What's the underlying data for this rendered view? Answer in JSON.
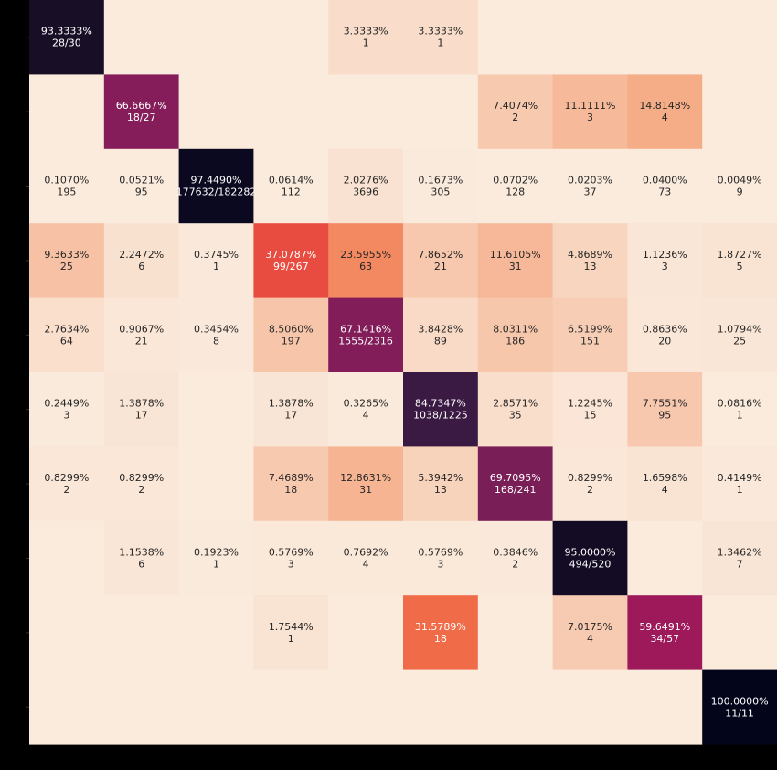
{
  "chart_data": {
    "type": "heatmap",
    "title": "",
    "xlabel": "",
    "ylabel": "",
    "rows": 10,
    "cols": 10,
    "color_scale": "rocket_r",
    "cells": [
      [
        {
          "pct": "93.3333%",
          "count": "28/30",
          "v": 93.3333
        },
        null,
        null,
        null,
        {
          "pct": "3.3333%",
          "count": "1",
          "v": 3.3333
        },
        {
          "pct": "3.3333%",
          "count": "1",
          "v": 3.3333
        },
        null,
        null,
        null,
        null
      ],
      [
        null,
        {
          "pct": "66.6667%",
          "count": "18/27",
          "v": 66.6667
        },
        null,
        null,
        null,
        null,
        {
          "pct": "7.4074%",
          "count": "2",
          "v": 7.4074
        },
        {
          "pct": "11.1111%",
          "count": "3",
          "v": 11.1111
        },
        {
          "pct": "14.8148%",
          "count": "4",
          "v": 14.8148
        },
        null
      ],
      [
        {
          "pct": "0.1070%",
          "count": "195",
          "v": 0.107
        },
        {
          "pct": "0.0521%",
          "count": "95",
          "v": 0.0521
        },
        {
          "pct": "97.4490%",
          "count": "177632/182282",
          "v": 97.449
        },
        {
          "pct": "0.0614%",
          "count": "112",
          "v": 0.0614
        },
        {
          "pct": "2.0276%",
          "count": "3696",
          "v": 2.0276
        },
        {
          "pct": "0.1673%",
          "count": "305",
          "v": 0.1673
        },
        {
          "pct": "0.0702%",
          "count": "128",
          "v": 0.0702
        },
        {
          "pct": "0.0203%",
          "count": "37",
          "v": 0.0203
        },
        {
          "pct": "0.0400%",
          "count": "73",
          "v": 0.04
        },
        {
          "pct": "0.0049%",
          "count": "9",
          "v": 0.0049
        }
      ],
      [
        {
          "pct": "9.3633%",
          "count": "25",
          "v": 9.3633
        },
        {
          "pct": "2.2472%",
          "count": "6",
          "v": 2.2472
        },
        {
          "pct": "0.3745%",
          "count": "1",
          "v": 0.3745
        },
        {
          "pct": "37.0787%",
          "count": "99/267",
          "v": 37.0787
        },
        {
          "pct": "23.5955%",
          "count": "63",
          "v": 23.5955
        },
        {
          "pct": "7.8652%",
          "count": "21",
          "v": 7.8652
        },
        {
          "pct": "11.6105%",
          "count": "31",
          "v": 11.6105
        },
        {
          "pct": "4.8689%",
          "count": "13",
          "v": 4.8689
        },
        {
          "pct": "1.1236%",
          "count": "3",
          "v": 1.1236
        },
        {
          "pct": "1.8727%",
          "count": "5",
          "v": 1.8727
        }
      ],
      [
        {
          "pct": "2.7634%",
          "count": "64",
          "v": 2.7634
        },
        {
          "pct": "0.9067%",
          "count": "21",
          "v": 0.9067
        },
        {
          "pct": "0.3454%",
          "count": "8",
          "v": 0.3454
        },
        {
          "pct": "8.5060%",
          "count": "197",
          "v": 8.506
        },
        {
          "pct": "67.1416%",
          "count": "1555/2316",
          "v": 67.1416
        },
        {
          "pct": "3.8428%",
          "count": "89",
          "v": 3.8428
        },
        {
          "pct": "8.0311%",
          "count": "186",
          "v": 8.0311
        },
        {
          "pct": "6.5199%",
          "count": "151",
          "v": 6.5199
        },
        {
          "pct": "0.8636%",
          "count": "20",
          "v": 0.8636
        },
        {
          "pct": "1.0794%",
          "count": "25",
          "v": 1.0794
        }
      ],
      [
        {
          "pct": "0.2449%",
          "count": "3",
          "v": 0.2449
        },
        {
          "pct": "1.3878%",
          "count": "17",
          "v": 1.3878
        },
        null,
        {
          "pct": "1.3878%",
          "count": "17",
          "v": 1.3878
        },
        {
          "pct": "0.3265%",
          "count": "4",
          "v": 0.3265
        },
        {
          "pct": "84.7347%",
          "count": "1038/1225",
          "v": 84.7347
        },
        {
          "pct": "2.8571%",
          "count": "35",
          "v": 2.8571
        },
        {
          "pct": "1.2245%",
          "count": "15",
          "v": 1.2245
        },
        {
          "pct": "7.7551%",
          "count": "95",
          "v": 7.7551
        },
        {
          "pct": "0.0816%",
          "count": "1",
          "v": 0.0816
        }
      ],
      [
        {
          "pct": "0.8299%",
          "count": "2",
          "v": 0.8299
        },
        {
          "pct": "0.8299%",
          "count": "2",
          "v": 0.8299
        },
        null,
        {
          "pct": "7.4689%",
          "count": "18",
          "v": 7.4689
        },
        {
          "pct": "12.8631%",
          "count": "31",
          "v": 12.8631
        },
        {
          "pct": "5.3942%",
          "count": "13",
          "v": 5.3942
        },
        {
          "pct": "69.7095%",
          "count": "168/241",
          "v": 69.7095
        },
        {
          "pct": "0.8299%",
          "count": "2",
          "v": 0.8299
        },
        {
          "pct": "1.6598%",
          "count": "4",
          "v": 1.6598
        },
        {
          "pct": "0.4149%",
          "count": "1",
          "v": 0.4149
        }
      ],
      [
        null,
        {
          "pct": "1.1538%",
          "count": "6",
          "v": 1.1538
        },
        {
          "pct": "0.1923%",
          "count": "1",
          "v": 0.1923
        },
        {
          "pct": "0.5769%",
          "count": "3",
          "v": 0.5769
        },
        {
          "pct": "0.7692%",
          "count": "4",
          "v": 0.7692
        },
        {
          "pct": "0.5769%",
          "count": "3",
          "v": 0.5769
        },
        {
          "pct": "0.3846%",
          "count": "2",
          "v": 0.3846
        },
        {
          "pct": "95.0000%",
          "count": "494/520",
          "v": 95.0
        },
        null,
        {
          "pct": "1.3462%",
          "count": "7",
          "v": 1.3462
        }
      ],
      [
        null,
        null,
        null,
        {
          "pct": "1.7544%",
          "count": "1",
          "v": 1.7544
        },
        null,
        {
          "pct": "31.5789%",
          "count": "18",
          "v": 31.5789
        },
        null,
        {
          "pct": "7.0175%",
          "count": "4",
          "v": 7.0175
        },
        {
          "pct": "59.6491%",
          "count": "34/57",
          "v": 59.6491
        },
        null
      ],
      [
        null,
        null,
        null,
        null,
        null,
        null,
        null,
        null,
        null,
        {
          "pct": "100.0000%",
          "count": "11/11",
          "v": 100.0
        }
      ]
    ]
  },
  "colors": {
    "background": "#000000",
    "empty_cell": "#FAEBDD",
    "text_dark": "#262626",
    "text_light": "#FFFFFF"
  }
}
